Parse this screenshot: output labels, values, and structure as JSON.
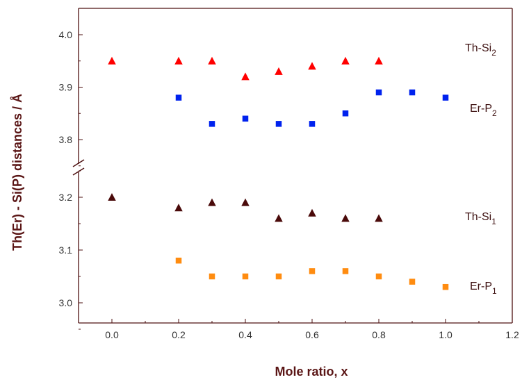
{
  "chart_data": {
    "type": "scatter",
    "xlabel": "Mole ratio, x",
    "ylabel": "Th(Er) - Si(P) distances / Å",
    "xlim": [
      -0.1,
      1.2
    ],
    "x_ticks": [
      "0.0",
      "0.2",
      "0.4",
      "0.6",
      "0.8",
      "1.0",
      "1.2"
    ],
    "y_broken_axis": true,
    "y_upper_segment": {
      "ylim": [
        3.7,
        4.05
      ],
      "ticks": [
        "3.8",
        "3.9",
        "4.0"
      ]
    },
    "y_lower_segment": {
      "ylim": [
        2.94,
        3.27
      ],
      "ticks": [
        "3.0",
        "3.1",
        "3.2"
      ]
    },
    "grid": false,
    "series": [
      {
        "name": "Th-Si2",
        "label": {
          "base": "Th-Si",
          "sub": "2"
        },
        "marker": "triangle",
        "color": "#ff0000",
        "segment": "upper",
        "x": [
          0.0,
          0.2,
          0.3,
          0.4,
          0.5,
          0.6,
          0.7,
          0.8
        ],
        "y": [
          3.95,
          3.95,
          3.95,
          3.92,
          3.93,
          3.94,
          3.95,
          3.95
        ]
      },
      {
        "name": "Er-P2",
        "label": {
          "base": "Er-P",
          "sub": "2"
        },
        "marker": "square",
        "color": "#0022ee",
        "segment": "upper",
        "x": [
          0.2,
          0.3,
          0.4,
          0.5,
          0.6,
          0.7,
          0.8,
          0.9,
          1.0
        ],
        "y": [
          3.88,
          3.83,
          3.84,
          3.83,
          3.83,
          3.85,
          3.89,
          3.89,
          3.88
        ]
      },
      {
        "name": "Th-Si1",
        "label": {
          "base": "Th-Si",
          "sub": "1"
        },
        "marker": "triangle",
        "color": "#4a0a0a",
        "segment": "lower",
        "x": [
          0.0,
          0.2,
          0.3,
          0.4,
          0.5,
          0.6,
          0.7,
          0.8
        ],
        "y": [
          3.2,
          3.18,
          3.19,
          3.19,
          3.16,
          3.17,
          3.16,
          3.16
        ]
      },
      {
        "name": "Er-P1",
        "label": {
          "base": "Er-P",
          "sub": "1"
        },
        "marker": "square",
        "color": "#ff8c10",
        "segment": "lower",
        "x": [
          0.2,
          0.3,
          0.4,
          0.5,
          0.6,
          0.7,
          0.8,
          0.9,
          1.0
        ],
        "y": [
          3.08,
          3.05,
          3.05,
          3.05,
          3.06,
          3.06,
          3.05,
          3.04,
          3.03
        ]
      }
    ]
  }
}
